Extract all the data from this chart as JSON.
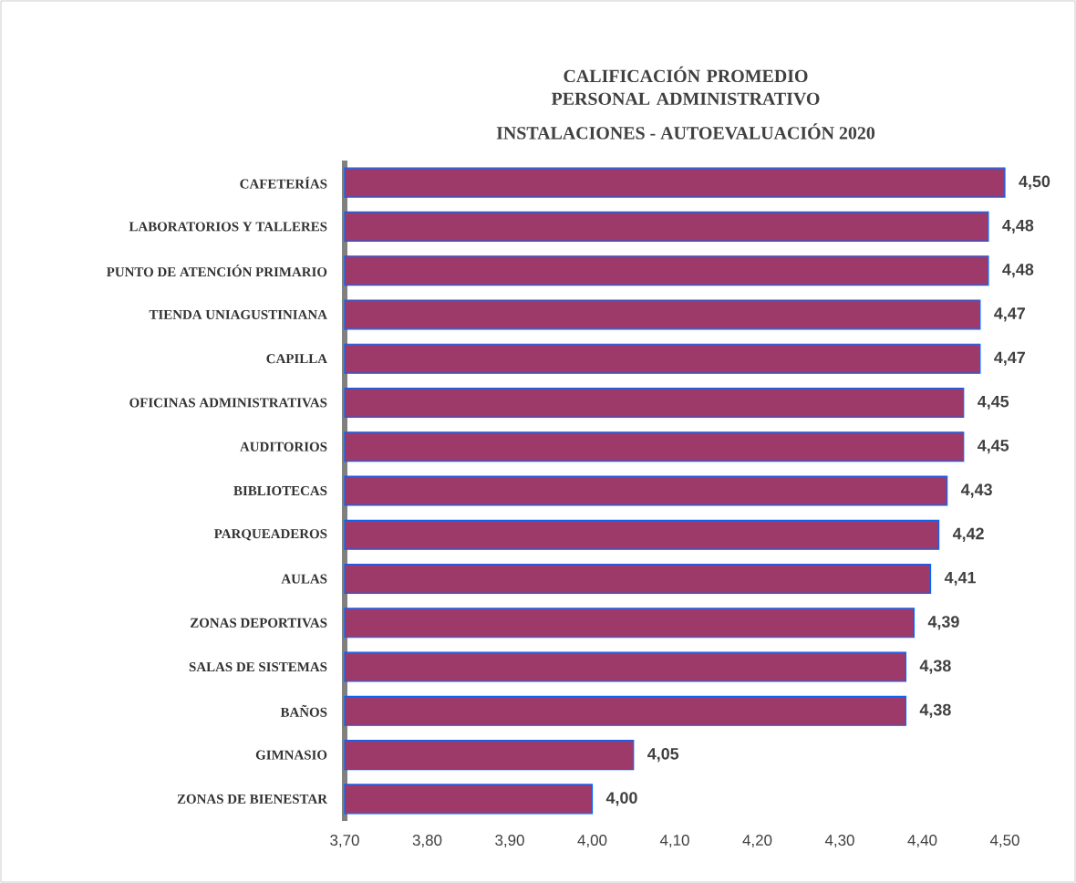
{
  "chart_data": {
    "type": "bar",
    "orientation": "horizontal",
    "title": "CALIFICACIÓN PROMEDIO PERSONAL ADMINISTRATIVO",
    "subtitle": "INSTALACIONES - AUTOEVALUACIÓN 2020",
    "categories": [
      "CAFETERÍAS",
      "LABORATORIOS Y TALLERES",
      "PUNTO DE ATENCIÓN PRIMARIO",
      "TIENDA UNIAGUSTINIANA",
      "CAPILLA",
      "OFICINAS ADMINISTRATIVAS",
      "AUDITORIOS",
      "BIBLIOTECAS",
      "PARQUEADEROS",
      "AULAS",
      "ZONAS DEPORTIVAS",
      "SALAS DE SISTEMAS",
      "BAÑOS",
      "GIMNASIO",
      "ZONAS DE BIENESTAR"
    ],
    "values": [
      4.5,
      4.48,
      4.48,
      4.47,
      4.47,
      4.45,
      4.45,
      4.43,
      4.42,
      4.41,
      4.39,
      4.38,
      4.38,
      4.05,
      4.0
    ],
    "value_labels": [
      "4,50",
      "4,48",
      "4,48",
      "4,47",
      "4,47",
      "4,45",
      "4,45",
      "4,43",
      "4,42",
      "4,41",
      "4,39",
      "4,38",
      "4,38",
      "4,05",
      "4,00"
    ],
    "color": "#9e3a6a",
    "xlim": [
      3.7,
      4.5
    ],
    "xticks": [
      {
        "value": 3.7,
        "label": "3,70"
      },
      {
        "value": 3.8,
        "label": "3,80"
      },
      {
        "value": 3.9,
        "label": "3,90"
      },
      {
        "value": 4.0,
        "label": "4,00"
      },
      {
        "value": 4.1,
        "label": "4,10"
      },
      {
        "value": 4.2,
        "label": "4,20"
      },
      {
        "value": 4.3,
        "label": "4,30"
      },
      {
        "value": 4.4,
        "label": "4,40"
      },
      {
        "value": 4.5,
        "label": "4,50"
      }
    ]
  }
}
